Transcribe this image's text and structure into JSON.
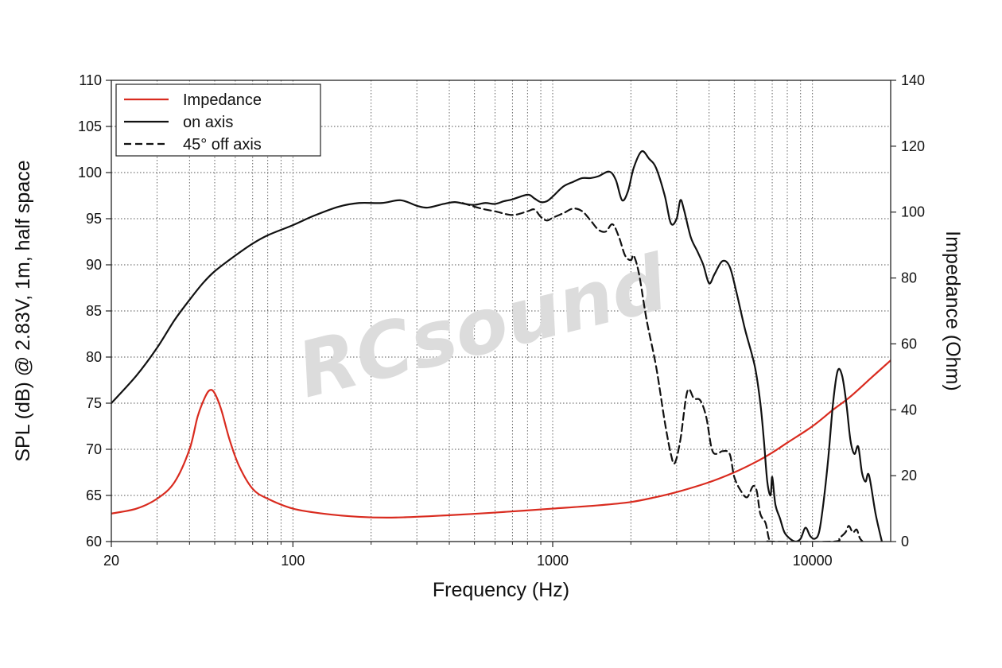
{
  "chart_data": {
    "type": "line",
    "title": "",
    "xlabel": "Frequency (Hz)",
    "ylabel": "SPL (dB) @ 2.83V, 1m, half space",
    "y2label": "Impedance (Ohm)",
    "x_scale": "log",
    "xlim": [
      20,
      20000
    ],
    "ylim": [
      60,
      110
    ],
    "y2lim": [
      0,
      140
    ],
    "x_ticks": [
      20,
      100,
      1000,
      10000
    ],
    "x_tick_labels": [
      "20",
      "100",
      "1000",
      "10000"
    ],
    "y_ticks": [
      60,
      65,
      70,
      75,
      80,
      85,
      90,
      95,
      100,
      105,
      110
    ],
    "y2_ticks": [
      0,
      20,
      40,
      60,
      80,
      100,
      120,
      140
    ],
    "grid": true,
    "legend_position": "top-left",
    "watermark": "RCsound",
    "series": [
      {
        "name": "Impedance",
        "axis": "right",
        "color": "#d92b1f",
        "dash": "solid",
        "points": [
          [
            20,
            8.5
          ],
          [
            25,
            10
          ],
          [
            30,
            13
          ],
          [
            35,
            18
          ],
          [
            40,
            28
          ],
          [
            43,
            38
          ],
          [
            46,
            44
          ],
          [
            48,
            46
          ],
          [
            50,
            45
          ],
          [
            53,
            40
          ],
          [
            57,
            31
          ],
          [
            62,
            23
          ],
          [
            70,
            16
          ],
          [
            80,
            13
          ],
          [
            100,
            10
          ],
          [
            130,
            8.5
          ],
          [
            180,
            7.5
          ],
          [
            250,
            7.3
          ],
          [
            400,
            8
          ],
          [
            600,
            8.8
          ],
          [
            1000,
            10
          ],
          [
            1500,
            11
          ],
          [
            2000,
            12
          ],
          [
            2500,
            13.5
          ],
          [
            3000,
            15
          ],
          [
            4000,
            18
          ],
          [
            5000,
            21
          ],
          [
            6000,
            24
          ],
          [
            7000,
            27
          ],
          [
            8000,
            30
          ],
          [
            10000,
            35
          ],
          [
            12000,
            40
          ],
          [
            14000,
            44
          ],
          [
            17000,
            50
          ],
          [
            20000,
            55
          ]
        ]
      },
      {
        "name": "on axis",
        "axis": "left",
        "color": "#111111",
        "dash": "solid",
        "points": [
          [
            20,
            75
          ],
          [
            25,
            78
          ],
          [
            30,
            81
          ],
          [
            35,
            84
          ],
          [
            40,
            86.2
          ],
          [
            45,
            88
          ],
          [
            50,
            89.3
          ],
          [
            60,
            91
          ],
          [
            70,
            92.3
          ],
          [
            80,
            93.2
          ],
          [
            100,
            94.3
          ],
          [
            120,
            95.3
          ],
          [
            150,
            96.3
          ],
          [
            180,
            96.7
          ],
          [
            220,
            96.7
          ],
          [
            260,
            97
          ],
          [
            300,
            96.4
          ],
          [
            330,
            96.2
          ],
          [
            380,
            96.6
          ],
          [
            420,
            96.8
          ],
          [
            460,
            96.6
          ],
          [
            500,
            96.5
          ],
          [
            550,
            96.7
          ],
          [
            600,
            96.6
          ],
          [
            650,
            96.9
          ],
          [
            700,
            97.1
          ],
          [
            800,
            97.6
          ],
          [
            850,
            97.2
          ],
          [
            900,
            96.8
          ],
          [
            950,
            96.9
          ],
          [
            1000,
            97.4
          ],
          [
            1100,
            98.5
          ],
          [
            1200,
            99
          ],
          [
            1300,
            99.4
          ],
          [
            1400,
            99.4
          ],
          [
            1500,
            99.6
          ],
          [
            1650,
            100.1
          ],
          [
            1750,
            99.2
          ],
          [
            1850,
            97
          ],
          [
            1950,
            98
          ],
          [
            2050,
            100.5
          ],
          [
            2200,
            102.3
          ],
          [
            2350,
            101.5
          ],
          [
            2500,
            100.5
          ],
          [
            2700,
            97.5
          ],
          [
            2850,
            94.5
          ],
          [
            3000,
            95
          ],
          [
            3100,
            97
          ],
          [
            3200,
            96
          ],
          [
            3400,
            93
          ],
          [
            3600,
            91.5
          ],
          [
            3800,
            90
          ],
          [
            4000,
            88
          ],
          [
            4200,
            89
          ],
          [
            4500,
            90.4
          ],
          [
            4800,
            89.8
          ],
          [
            5100,
            87
          ],
          [
            5500,
            83
          ],
          [
            6000,
            79
          ],
          [
            6300,
            75
          ],
          [
            6500,
            71
          ],
          [
            6700,
            66.5
          ],
          [
            6900,
            65
          ],
          [
            7000,
            67
          ],
          [
            7200,
            64
          ],
          [
            7500,
            62.5
          ],
          [
            7800,
            61
          ],
          [
            8200,
            60.3
          ],
          [
            8600,
            60
          ],
          [
            9000,
            60.3
          ],
          [
            9400,
            61.5
          ],
          [
            9800,
            60.6
          ],
          [
            10200,
            60.3
          ],
          [
            10600,
            61
          ],
          [
            11000,
            64
          ],
          [
            11500,
            69
          ],
          [
            12000,
            75
          ],
          [
            12500,
            78.5
          ],
          [
            13000,
            78
          ],
          [
            13500,
            75
          ],
          [
            14000,
            71
          ],
          [
            14500,
            69.5
          ],
          [
            15000,
            70.3
          ],
          [
            15500,
            67.5
          ],
          [
            16000,
            66.5
          ],
          [
            16500,
            67.2
          ],
          [
            17500,
            63
          ],
          [
            18500,
            60
          ]
        ]
      },
      {
        "name": "45° off axis",
        "axis": "left",
        "color": "#111111",
        "dash": "dashed",
        "points": [
          [
            450,
            96.7
          ],
          [
            500,
            96.3
          ],
          [
            550,
            96
          ],
          [
            600,
            95.8
          ],
          [
            700,
            95.4
          ],
          [
            800,
            95.8
          ],
          [
            850,
            96
          ],
          [
            900,
            95.2
          ],
          [
            950,
            94.8
          ],
          [
            1000,
            95.1
          ],
          [
            1100,
            95.6
          ],
          [
            1200,
            96.1
          ],
          [
            1300,
            95.8
          ],
          [
            1400,
            94.8
          ],
          [
            1500,
            93.8
          ],
          [
            1600,
            93.6
          ],
          [
            1700,
            94.4
          ],
          [
            1800,
            93
          ],
          [
            1900,
            91
          ],
          [
            2000,
            90.5
          ],
          [
            2050,
            91
          ],
          [
            2150,
            89
          ],
          [
            2300,
            84
          ],
          [
            2500,
            79
          ],
          [
            2700,
            73
          ],
          [
            2850,
            69.5
          ],
          [
            2950,
            68.5
          ],
          [
            3100,
            71
          ],
          [
            3300,
            76.3
          ],
          [
            3500,
            75.5
          ],
          [
            3700,
            75.3
          ],
          [
            3900,
            73.5
          ],
          [
            4100,
            70
          ],
          [
            4300,
            69.5
          ],
          [
            4500,
            69.8
          ],
          [
            4800,
            69.5
          ],
          [
            5000,
            67
          ],
          [
            5300,
            65.5
          ],
          [
            5600,
            64.8
          ],
          [
            5900,
            66
          ],
          [
            6100,
            65.5
          ],
          [
            6300,
            63
          ],
          [
            6600,
            62
          ],
          [
            6800,
            60.3
          ],
          [
            7000,
            60
          ],
          [
            12000,
            60
          ],
          [
            12700,
            60.4
          ],
          [
            13400,
            61
          ],
          [
            13800,
            61.7
          ],
          [
            14300,
            61
          ],
          [
            14800,
            61.3
          ],
          [
            15200,
            60.4
          ],
          [
            15600,
            60
          ]
        ]
      }
    ]
  }
}
